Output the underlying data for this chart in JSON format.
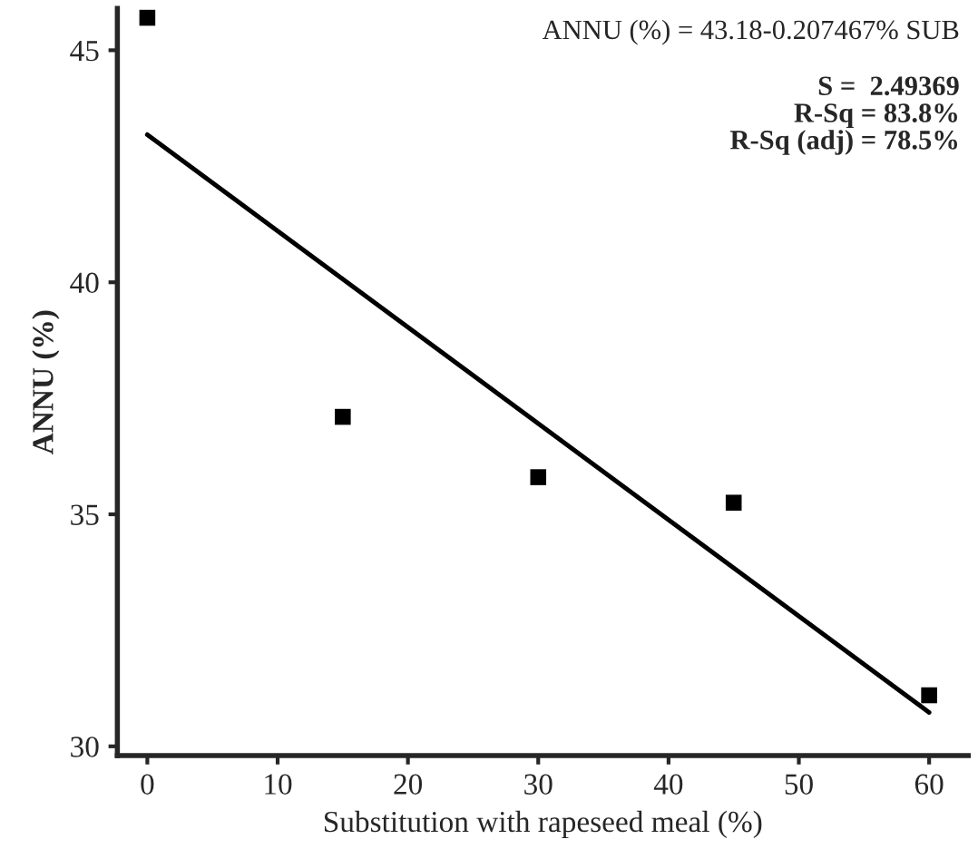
{
  "chart_data": {
    "type": "scatter",
    "xlabel": "Substitution with rapeseed meal (%)",
    "ylabel": "ANNU (%)",
    "x": [
      0,
      15,
      30,
      45,
      60
    ],
    "series": [
      {
        "color": "#000000",
        "marker": "square",
        "values": [
          45.7,
          37.1,
          35.8,
          35.25,
          31.1
        ]
      },
      {
        "type": "line",
        "color": "#000000",
        "x": [
          0,
          60
        ],
        "values": [
          43.18,
          30.73
        ],
        "marker": "none",
        "line_style": "solid"
      }
    ],
    "xlim": [
      -2.3,
      63
    ],
    "xticks": [
      0,
      10,
      20,
      30,
      40,
      50,
      60
    ],
    "ylim": [
      29.8,
      45.9
    ],
    "yticks": [
      30,
      35,
      40,
      45
    ],
    "annotations": [
      "ANNU (%) = 43.18-0.207467% SUB",
      "S =  2.49369\nR-Sq = 83.8%\nR-Sq (adj) = 78.5%"
    ],
    "grid": false,
    "legend": false
  }
}
